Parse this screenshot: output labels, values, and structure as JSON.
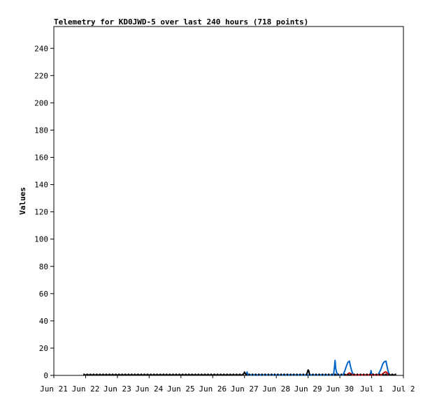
{
  "chart_data": {
    "type": "line",
    "title": "Telemetry for KD0JWD-5 over last 240 hours (718 points)",
    "ylabel": "Values",
    "xlabel": "",
    "ylim": [
      0,
      256
    ],
    "yticks": [
      0,
      20,
      40,
      60,
      80,
      100,
      120,
      140,
      160,
      180,
      200,
      220,
      240
    ],
    "xlim": [
      0,
      11
    ],
    "xticks": [
      {
        "x": 0,
        "label": "Jun 21"
      },
      {
        "x": 1,
        "label": "Jun 22"
      },
      {
        "x": 2,
        "label": "Jun 23"
      },
      {
        "x": 3,
        "label": "Jun 24"
      },
      {
        "x": 4,
        "label": "Jun 25"
      },
      {
        "x": 5,
        "label": "Jun 26"
      },
      {
        "x": 6,
        "label": "Jun 27"
      },
      {
        "x": 7,
        "label": "Jun 28"
      },
      {
        "x": 8,
        "label": "Jun 29"
      },
      {
        "x": 9,
        "label": "Jun 30"
      },
      {
        "x": 10,
        "label": "Jul 1"
      },
      {
        "x": 11,
        "label": "Jul 2"
      }
    ],
    "grid": false,
    "series": [
      {
        "color": "#000000",
        "points": [
          [
            0.95,
            0.3
          ],
          [
            1.5,
            0.3
          ],
          [
            2.0,
            0.3
          ],
          [
            2.5,
            0.3
          ],
          [
            3.0,
            0.3
          ],
          [
            3.5,
            0.3
          ],
          [
            4.0,
            0.3
          ],
          [
            4.5,
            0.3
          ],
          [
            5.0,
            0.3
          ],
          [
            5.5,
            0.3
          ],
          [
            5.95,
            0.3
          ],
          [
            5.98,
            1.5
          ],
          [
            6.0,
            2.5
          ],
          [
            6.02,
            1.5
          ],
          [
            6.05,
            0.3
          ],
          [
            6.5,
            0.3
          ],
          [
            7.0,
            0.3
          ],
          [
            7.5,
            0.3
          ],
          [
            7.95,
            0.3
          ],
          [
            7.98,
            2.5
          ],
          [
            8.0,
            4.0
          ],
          [
            8.02,
            3.5
          ],
          [
            8.05,
            0.3
          ],
          [
            8.5,
            0.3
          ],
          [
            9.0,
            0.3
          ],
          [
            9.5,
            0.3
          ],
          [
            10.0,
            0.3
          ],
          [
            10.5,
            0.3
          ],
          [
            10.75,
            0.3
          ]
        ]
      },
      {
        "color": "#0066cc",
        "points": [
          [
            6.05,
            0.3
          ],
          [
            6.08,
            2.5
          ],
          [
            6.1,
            1.0
          ],
          [
            6.13,
            0.3
          ],
          [
            8.8,
            0.3
          ],
          [
            8.83,
            6.0
          ],
          [
            8.85,
            11.0
          ],
          [
            8.87,
            5.0
          ],
          [
            8.9,
            2.0
          ],
          [
            8.93,
            0.3
          ],
          [
            9.1,
            0.3
          ],
          [
            9.15,
            3.0
          ],
          [
            9.2,
            6.5
          ],
          [
            9.25,
            9.5
          ],
          [
            9.3,
            10.5
          ],
          [
            9.33,
            7.0
          ],
          [
            9.37,
            3.5
          ],
          [
            9.42,
            0.3
          ],
          [
            9.95,
            0.3
          ],
          [
            9.98,
            3.5
          ],
          [
            10.0,
            1.5
          ],
          [
            10.02,
            0.3
          ],
          [
            10.2,
            0.3
          ],
          [
            10.25,
            2.5
          ],
          [
            10.3,
            5.0
          ],
          [
            10.35,
            8.5
          ],
          [
            10.4,
            10.0
          ],
          [
            10.45,
            10.5
          ],
          [
            10.48,
            7.0
          ],
          [
            10.52,
            3.0
          ],
          [
            10.56,
            0.3
          ]
        ]
      },
      {
        "color": "#cc0000",
        "points": [
          [
            9.2,
            0.3
          ],
          [
            9.25,
            1.0
          ],
          [
            9.3,
            1.8
          ],
          [
            9.35,
            1.2
          ],
          [
            9.4,
            0.3
          ],
          [
            10.3,
            0.3
          ],
          [
            10.35,
            1.2
          ],
          [
            10.4,
            2.2
          ],
          [
            10.45,
            2.6
          ],
          [
            10.5,
            1.5
          ],
          [
            10.54,
            0.3
          ]
        ]
      }
    ]
  }
}
